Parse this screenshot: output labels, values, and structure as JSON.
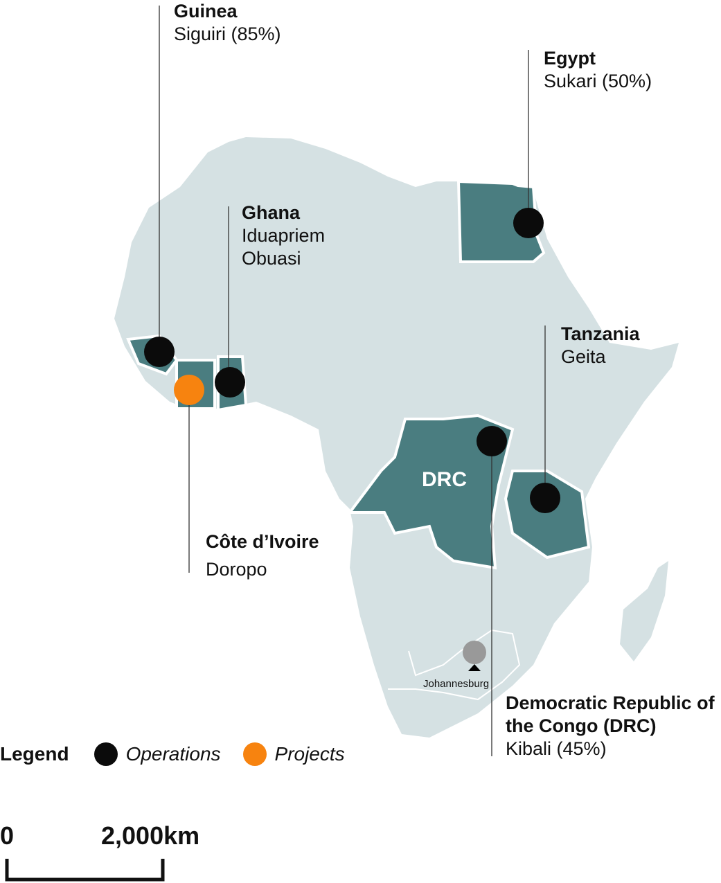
{
  "colors": {
    "land": "#d5e1e3",
    "country": "#4a7d80",
    "operations": "#0b0b0b",
    "projects": "#f7830f",
    "city": "#999999"
  },
  "locations": [
    {
      "country": "Guinea",
      "mine": "Siguiri (85%)",
      "type": "operations"
    },
    {
      "country": "Egypt",
      "mine": "Sukari (50%)",
      "type": "operations"
    },
    {
      "country": "Ghana",
      "mine": "Iduapriem",
      "mine2": "Obuasi",
      "type": "operations"
    },
    {
      "country": "Tanzania",
      "mine": "Geita",
      "type": "operations"
    },
    {
      "country": "Côte d’Ivoire",
      "mine": "Doropo",
      "type": "projects"
    },
    {
      "country": "Democratic Republic of",
      "country2": "the Congo (DRC)",
      "mine": "Kibali (45%)",
      "type": "operations"
    }
  ],
  "map_label": "DRC",
  "city": "Johannesburg",
  "legend": {
    "title": "Legend",
    "operations": "Operations",
    "projects": "Projects"
  },
  "scale": {
    "start": "0",
    "end": "2,000km"
  }
}
